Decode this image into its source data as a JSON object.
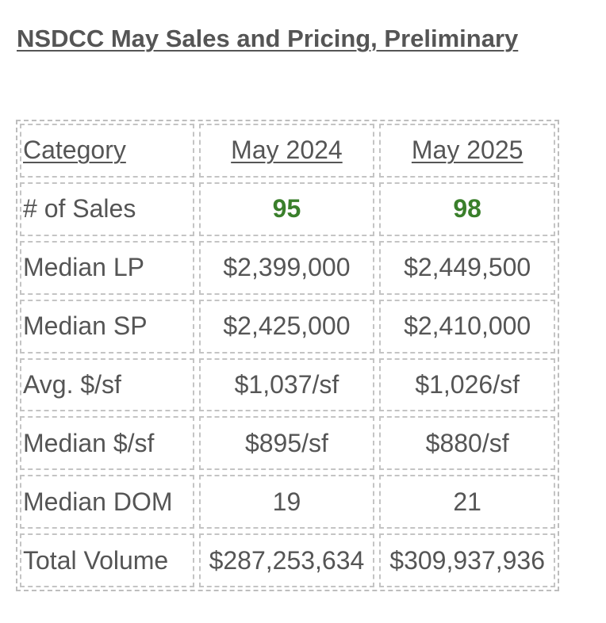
{
  "title": "NSDCC May Sales and Pricing, Preliminary",
  "accent_color": "#3a7f2b",
  "table": {
    "headers": [
      "Category",
      "May 2024",
      "May 2025"
    ],
    "rows": [
      {
        "category": "# of Sales",
        "may_2024": "95",
        "may_2025": "98"
      },
      {
        "category": "Median LP",
        "may_2024": "$2,399,000",
        "may_2025": "$2,449,500"
      },
      {
        "category": "Median SP",
        "may_2024": "$2,425,000",
        "may_2025": "$2,410,000"
      },
      {
        "category": "Avg. $/sf",
        "may_2024": "$1,037/sf",
        "may_2025": "$1,026/sf"
      },
      {
        "category": "Median $/sf",
        "may_2024": "$895/sf",
        "may_2025": "$880/sf"
      },
      {
        "category": "Median DOM",
        "may_2024": "19",
        "may_2025": "21"
      },
      {
        "category": "Total Volume",
        "may_2024": "$287,253,634",
        "may_2025": "$309,937,936"
      }
    ]
  }
}
